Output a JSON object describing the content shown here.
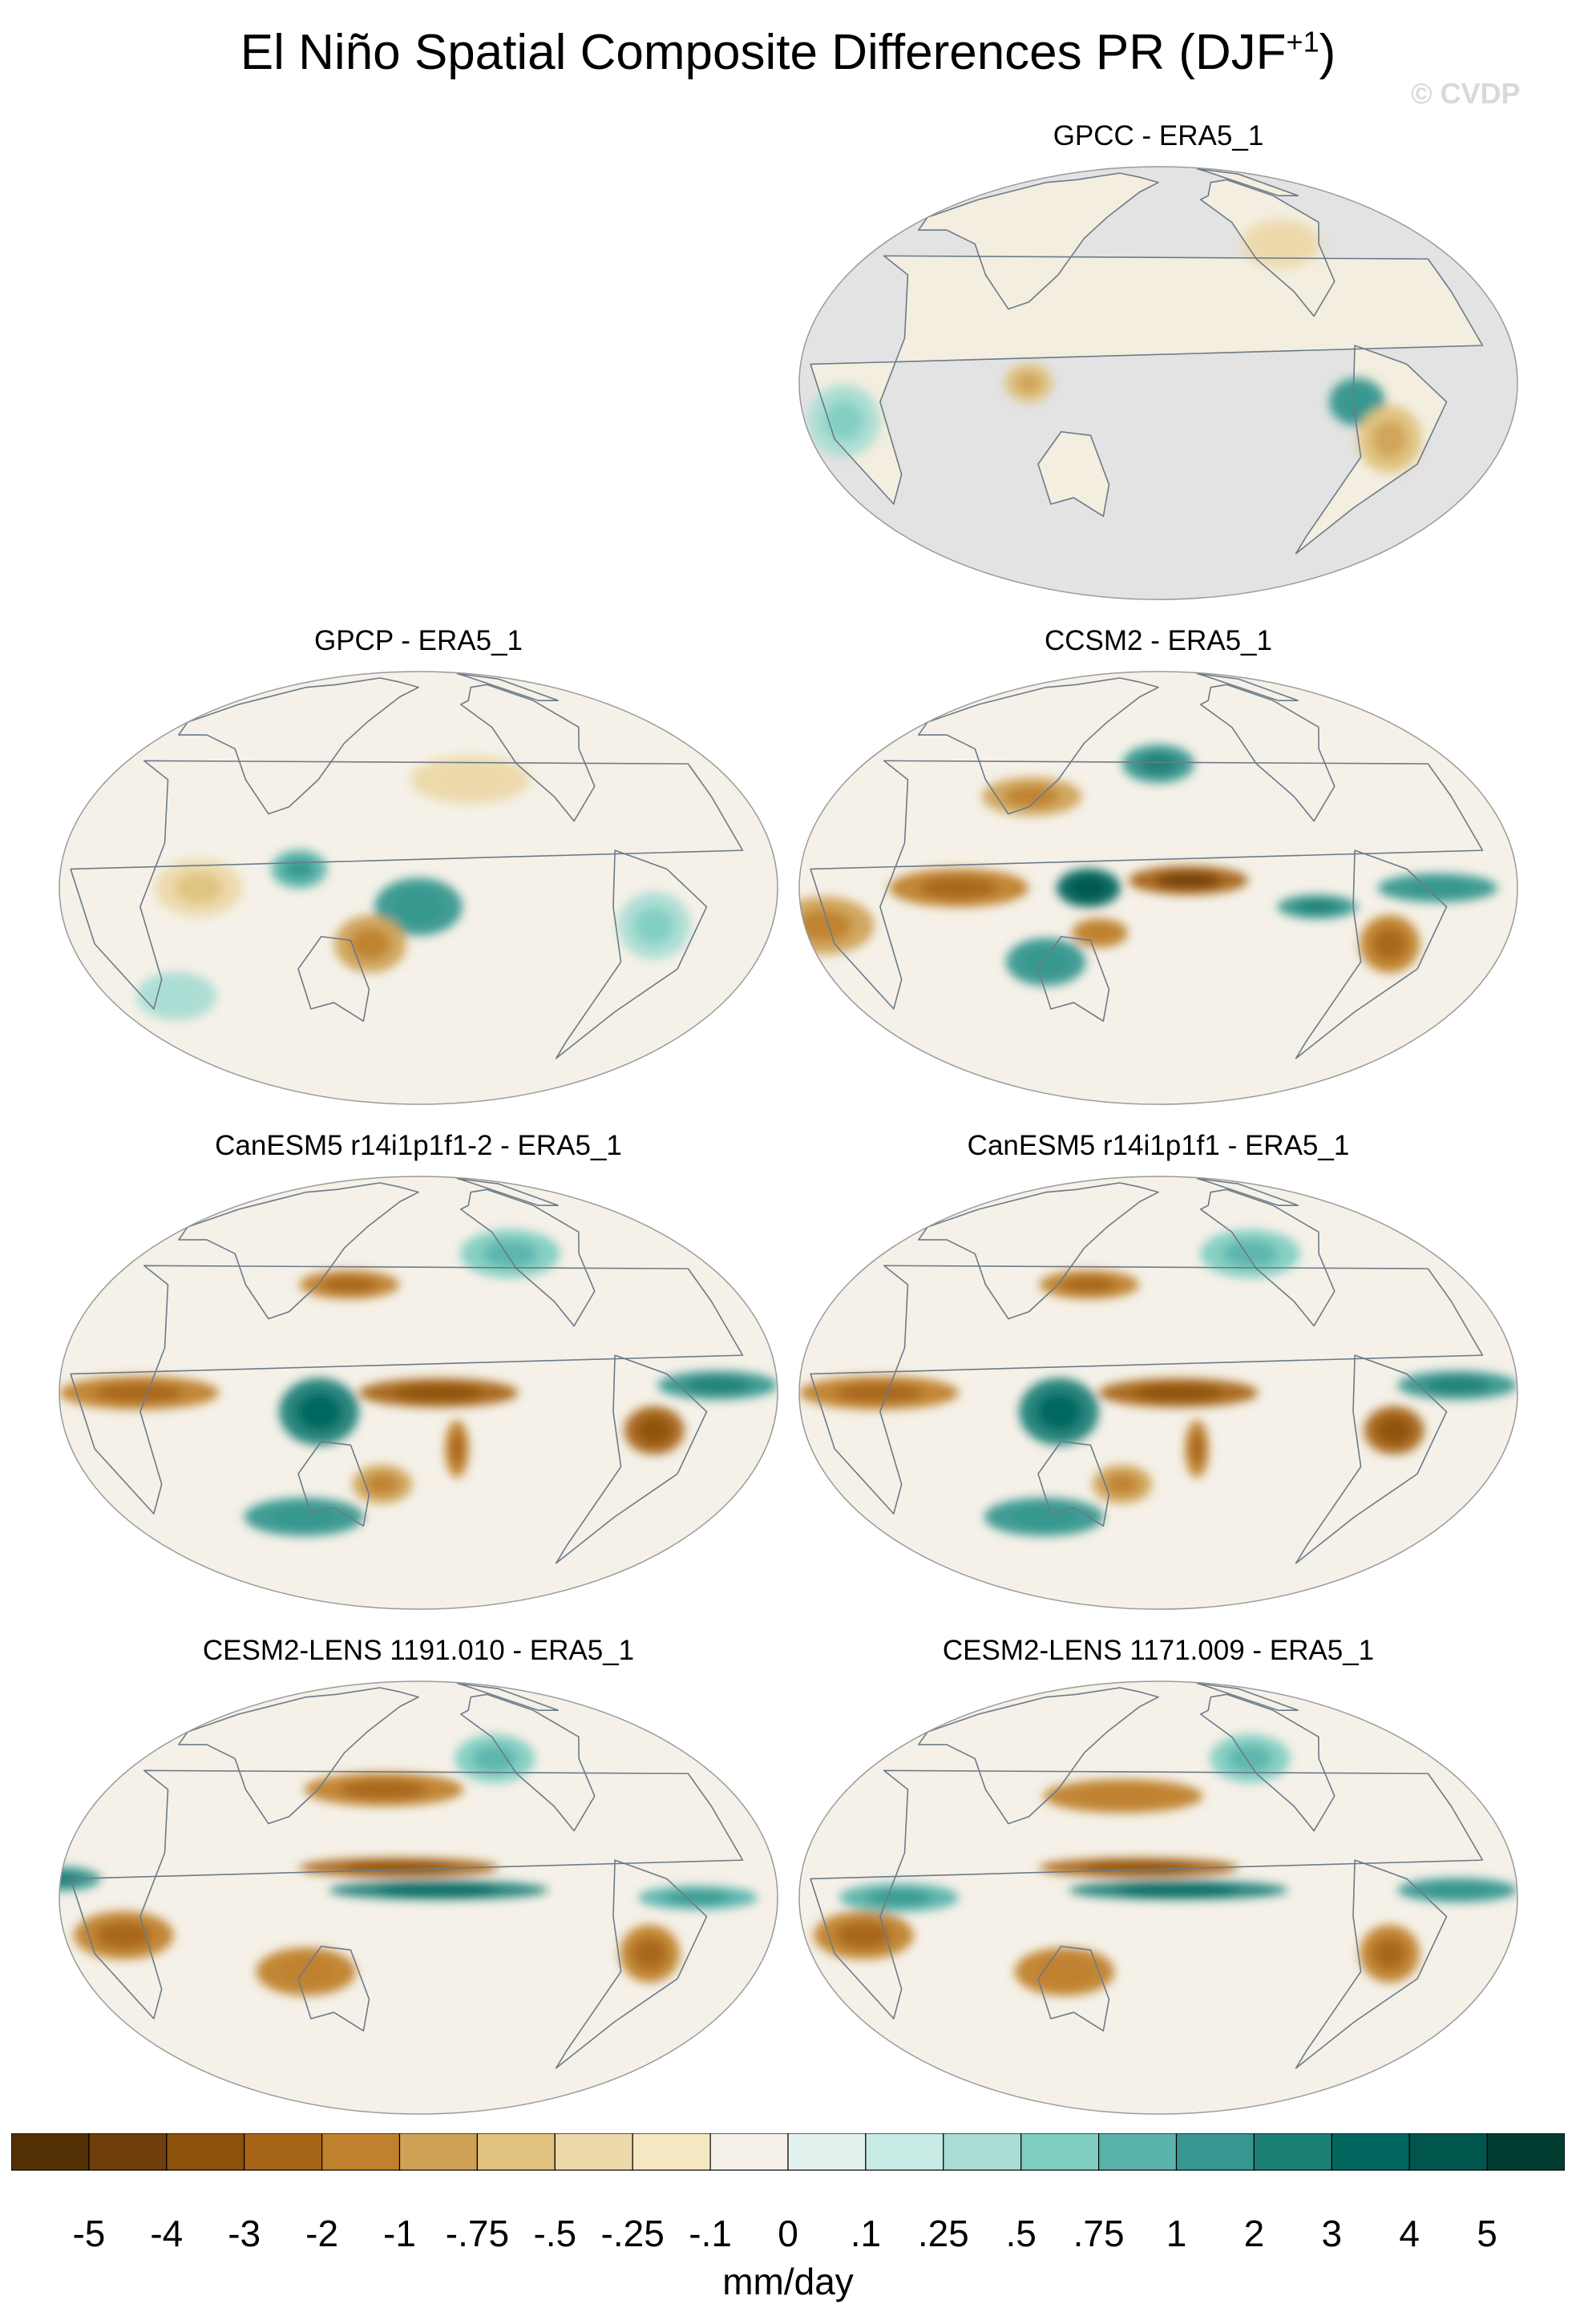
{
  "chart_data": {
    "type": "heatmap",
    "title_main": "El Niño Spatial Composite Differences PR (DJF",
    "title_sup": "+1",
    "title_close": ")",
    "watermark": "© CVDP",
    "projection": "Robinson-like global ellipse, Pacific-centered",
    "units": "mm/day",
    "colorbar": {
      "labels": [
        "-5",
        "-4",
        "-3",
        "-2",
        "-1",
        "-.75",
        "-.5",
        "-.25",
        "-.1",
        "0",
        ".1",
        ".25",
        ".5",
        ".75",
        "1",
        "2",
        "3",
        "4",
        "5"
      ],
      "colors": [
        "#543005",
        "#6f3e0b",
        "#8c510a",
        "#a66419",
        "#bf812d",
        "#cfa256",
        "#dfc27d",
        "#ecd9aa",
        "#f6e8c3",
        "#f5f1e8",
        "#e4f2ef",
        "#c7eae5",
        "#a9dcd3",
        "#80cdc1",
        "#5ab4ac",
        "#35978f",
        "#1d8077",
        "#01665e",
        "#00554c",
        "#003c30"
      ]
    },
    "panels": [
      {
        "id": "gpcc",
        "label": "GPCC - ERA5_1",
        "land_only": true,
        "anomalies": [
          {
            "lon": 280,
            "lat": -5,
            "v": 1.0,
            "rx": 14,
            "ry": 10
          },
          {
            "lon": 300,
            "lat": -15,
            "v": -0.6,
            "rx": 16,
            "ry": 14
          },
          {
            "lon": 115,
            "lat": 0,
            "v": -0.6,
            "rx": 12,
            "ry": 8
          },
          {
            "lon": 20,
            "lat": -10,
            "v": 0.4,
            "rx": 18,
            "ry": 15
          },
          {
            "lon": 260,
            "lat": 40,
            "v": -0.3,
            "rx": 20,
            "ry": 10
          }
        ]
      },
      {
        "id": "gpcp",
        "label": "GPCP - ERA5_1",
        "land_only": false,
        "anomalies": [
          {
            "lon": 180,
            "lat": -5,
            "v": 1.2,
            "rx": 22,
            "ry": 12
          },
          {
            "lon": 155,
            "lat": -15,
            "v": -0.8,
            "rx": 18,
            "ry": 12
          },
          {
            "lon": 120,
            "lat": 5,
            "v": 0.8,
            "rx": 14,
            "ry": 8
          },
          {
            "lon": 70,
            "lat": 0,
            "v": -0.5,
            "rx": 22,
            "ry": 12
          },
          {
            "lon": 210,
            "lat": 30,
            "v": -0.3,
            "rx": 30,
            "ry": 10
          },
          {
            "lon": 300,
            "lat": -10,
            "v": 0.4,
            "rx": 18,
            "ry": 14
          },
          {
            "lon": 40,
            "lat": -30,
            "v": 0.3,
            "rx": 20,
            "ry": 10
          }
        ]
      },
      {
        "id": "ccsm2",
        "label": "CCSM2 - ERA5_1",
        "land_only": false,
        "anomalies": [
          {
            "lon": 145,
            "lat": 0,
            "v": 3.5,
            "rx": 16,
            "ry": 8
          },
          {
            "lon": 195,
            "lat": 2,
            "v": -3.0,
            "rx": 30,
            "ry": 6
          },
          {
            "lon": 80,
            "lat": 0,
            "v": -2.0,
            "rx": 35,
            "ry": 8
          },
          {
            "lon": 180,
            "lat": 35,
            "v": 1.5,
            "rx": 18,
            "ry": 8
          },
          {
            "lon": 110,
            "lat": 25,
            "v": -1.0,
            "rx": 25,
            "ry": 8
          },
          {
            "lon": 260,
            "lat": -5,
            "v": 1.5,
            "rx": 20,
            "ry": 5
          },
          {
            "lon": 320,
            "lat": 0,
            "v": 1.2,
            "rx": 30,
            "ry": 6
          },
          {
            "lon": 300,
            "lat": -15,
            "v": -1.5,
            "rx": 15,
            "ry": 12
          },
          {
            "lon": 10,
            "lat": -10,
            "v": -1.0,
            "rx": 25,
            "ry": 12
          },
          {
            "lon": 120,
            "lat": -20,
            "v": 1.0,
            "rx": 20,
            "ry": 10
          },
          {
            "lon": 150,
            "lat": -12,
            "v": -1.2,
            "rx": 14,
            "ry": 6
          }
        ]
      },
      {
        "id": "canesm5-2",
        "label": "CanESM5 r14i1p1f1-2 - ERA5_1",
        "land_only": false,
        "anomalies": [
          {
            "lon": 130,
            "lat": -5,
            "v": 2.5,
            "rx": 20,
            "ry": 14
          },
          {
            "lon": 190,
            "lat": 0,
            "v": -2.5,
            "rx": 40,
            "ry": 6
          },
          {
            "lon": 40,
            "lat": 0,
            "v": -2.0,
            "rx": 40,
            "ry": 7
          },
          {
            "lon": 300,
            "lat": -10,
            "v": -2.5,
            "rx": 15,
            "ry": 10
          },
          {
            "lon": 330,
            "lat": 2,
            "v": 1.5,
            "rx": 30,
            "ry": 6
          },
          {
            "lon": 140,
            "lat": 30,
            "v": -1.5,
            "rx": 25,
            "ry": 6
          },
          {
            "lon": 160,
            "lat": -25,
            "v": -1.0,
            "rx": 15,
            "ry": 8
          },
          {
            "lon": 200,
            "lat": -15,
            "v": -1.5,
            "rx": 6,
            "ry": 12
          },
          {
            "lon": 110,
            "lat": -35,
            "v": 1.0,
            "rx": 30,
            "ry": 8
          },
          {
            "lon": 240,
            "lat": 40,
            "v": 0.6,
            "rx": 25,
            "ry": 10
          }
        ]
      },
      {
        "id": "canesm5",
        "label": "CanESM5 r14i1p1f1 - ERA5_1",
        "land_only": false,
        "anomalies": [
          {
            "lon": 130,
            "lat": -5,
            "v": 2.5,
            "rx": 20,
            "ry": 14
          },
          {
            "lon": 190,
            "lat": 0,
            "v": -2.5,
            "rx": 40,
            "ry": 6
          },
          {
            "lon": 40,
            "lat": 0,
            "v": -2.0,
            "rx": 40,
            "ry": 7
          },
          {
            "lon": 300,
            "lat": -10,
            "v": -2.5,
            "rx": 15,
            "ry": 10
          },
          {
            "lon": 330,
            "lat": 2,
            "v": 1.5,
            "rx": 30,
            "ry": 6
          },
          {
            "lon": 140,
            "lat": 30,
            "v": -1.5,
            "rx": 25,
            "ry": 6
          },
          {
            "lon": 160,
            "lat": -25,
            "v": -1.0,
            "rx": 15,
            "ry": 8
          },
          {
            "lon": 200,
            "lat": -15,
            "v": -1.5,
            "rx": 6,
            "ry": 12
          },
          {
            "lon": 110,
            "lat": -35,
            "v": 1.0,
            "rx": 30,
            "ry": 8
          },
          {
            "lon": 240,
            "lat": 40,
            "v": 0.6,
            "rx": 25,
            "ry": 10
          }
        ]
      },
      {
        "id": "cesm2-1191",
        "label": "CESM2-LENS 1191.010 - ERA5_1",
        "land_only": false,
        "anomalies": [
          {
            "lon": 190,
            "lat": 2,
            "v": 2.5,
            "rx": 55,
            "ry": 4
          },
          {
            "lon": 170,
            "lat": 8,
            "v": -2.5,
            "rx": 50,
            "ry": 4
          },
          {
            "lon": 160,
            "lat": 30,
            "v": -1.5,
            "rx": 40,
            "ry": 7
          },
          {
            "lon": 30,
            "lat": -10,
            "v": -2.0,
            "rx": 25,
            "ry": 10
          },
          {
            "lon": 300,
            "lat": -15,
            "v": -1.8,
            "rx": 15,
            "ry": 12
          },
          {
            "lon": 120,
            "lat": -20,
            "v": -1.2,
            "rx": 25,
            "ry": 10
          },
          {
            "lon": 320,
            "lat": 0,
            "v": 0.8,
            "rx": 30,
            "ry": 5
          },
          {
            "lon": 0,
            "lat": 5,
            "v": 1.5,
            "rx": 20,
            "ry": 5
          },
          {
            "lon": 230,
            "lat": 40,
            "v": 0.6,
            "rx": 20,
            "ry": 10
          }
        ]
      },
      {
        "id": "cesm2-1171",
        "label": "CESM2-LENS 1171.009 - ERA5_1",
        "land_only": false,
        "anomalies": [
          {
            "lon": 190,
            "lat": 2,
            "v": 2.5,
            "rx": 55,
            "ry": 4
          },
          {
            "lon": 170,
            "lat": 8,
            "v": -2.2,
            "rx": 50,
            "ry": 4
          },
          {
            "lon": 160,
            "lat": 28,
            "v": -1.2,
            "rx": 40,
            "ry": 7
          },
          {
            "lon": 30,
            "lat": -10,
            "v": -1.8,
            "rx": 25,
            "ry": 10
          },
          {
            "lon": 300,
            "lat": -15,
            "v": -1.5,
            "rx": 15,
            "ry": 12
          },
          {
            "lon": 130,
            "lat": -20,
            "v": -1.2,
            "rx": 25,
            "ry": 10
          },
          {
            "lon": 330,
            "lat": 2,
            "v": 1.0,
            "rx": 30,
            "ry": 5
          },
          {
            "lon": 50,
            "lat": 0,
            "v": 0.8,
            "rx": 30,
            "ry": 6
          },
          {
            "lon": 240,
            "lat": 40,
            "v": 0.6,
            "rx": 20,
            "ry": 10
          }
        ]
      }
    ]
  }
}
